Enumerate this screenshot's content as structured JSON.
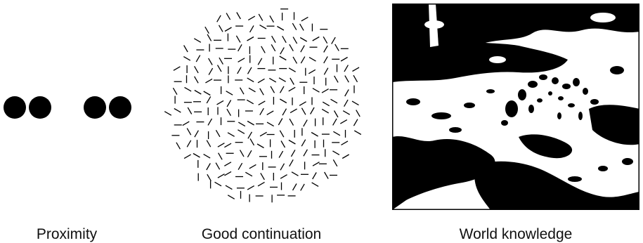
{
  "captions": {
    "proximity": "Proximity",
    "continuation": "Good continuation",
    "world": "World knowledge"
  }
}
